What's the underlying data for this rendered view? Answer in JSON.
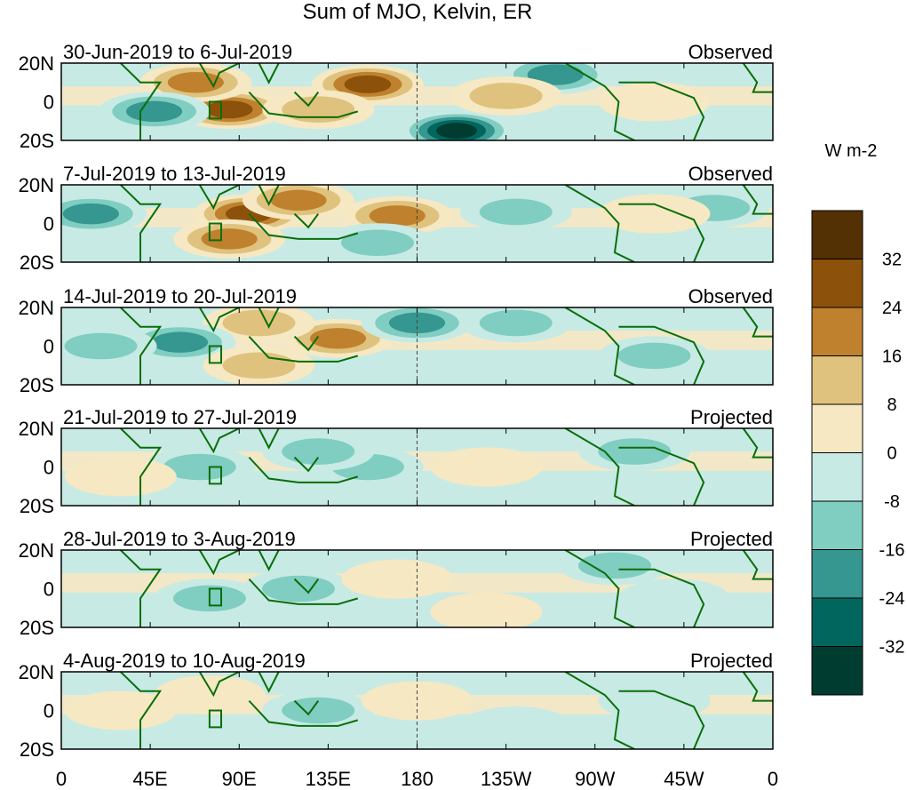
{
  "title": "Sum of MJO, Kelvin, ER",
  "units": "W m-2",
  "chart_data": {
    "type": "heatmap",
    "title": "Sum of MJO, Kelvin, ER",
    "colorbar": {
      "label": "W m-2",
      "levels": [
        -32,
        -24,
        -16,
        -8,
        0,
        8,
        16,
        24,
        32
      ],
      "tick_labels": [
        "32",
        "24",
        "16",
        "8",
        "0",
        "-8",
        "-16",
        "-24",
        "-32"
      ],
      "colors": [
        "#003c30",
        "#01665e",
        "#35978f",
        "#80cdc1",
        "#c7eae5",
        "#f6e8c3",
        "#dfc27d",
        "#bf812d",
        "#8c510a",
        "#543005"
      ]
    },
    "x_ticks": [
      "0",
      "45E",
      "90E",
      "135E",
      "180",
      "135W",
      "90W",
      "45W",
      "0"
    ],
    "y_ticks": [
      "20N",
      "0",
      "20S"
    ],
    "xlim": [
      0,
      360
    ],
    "ylim": [
      -20,
      20
    ],
    "panels": [
      {
        "dates": "30-Jun-2019 to 6-Jul-2019",
        "status": "Observed",
        "features": [
          {
            "lon": 85,
            "lat": -4,
            "value": 30
          },
          {
            "lon": 68,
            "lat": 10,
            "value": 22
          },
          {
            "lon": 47,
            "lat": -5,
            "value": -22
          },
          {
            "lon": 155,
            "lat": 9,
            "value": 26
          },
          {
            "lon": 200,
            "lat": -15,
            "value": -38
          },
          {
            "lon": 250,
            "lat": 14,
            "value": -22
          },
          {
            "lon": 130,
            "lat": -4,
            "value": 10
          },
          {
            "lon": 225,
            "lat": 3,
            "value": 12
          },
          {
            "lon": 300,
            "lat": 0,
            "value": 6
          }
        ]
      },
      {
        "dates": "7-Jul-2019 to 13-Jul-2019",
        "status": "Observed",
        "features": [
          {
            "lon": 95,
            "lat": 5,
            "value": 26
          },
          {
            "lon": 120,
            "lat": 12,
            "value": 22
          },
          {
            "lon": 15,
            "lat": 5,
            "value": -22
          },
          {
            "lon": 170,
            "lat": 4,
            "value": 20
          },
          {
            "lon": 160,
            "lat": -10,
            "value": -14
          },
          {
            "lon": 230,
            "lat": 6,
            "value": -14
          },
          {
            "lon": 330,
            "lat": 8,
            "value": -12
          },
          {
            "lon": 300,
            "lat": 5,
            "value": 6
          },
          {
            "lon": 85,
            "lat": -8,
            "value": 18
          }
        ]
      },
      {
        "dates": "14-Jul-2019 to 20-Jul-2019",
        "status": "Observed",
        "features": [
          {
            "lon": 140,
            "lat": 4,
            "value": 22
          },
          {
            "lon": 100,
            "lat": 12,
            "value": 16
          },
          {
            "lon": 60,
            "lat": 2,
            "value": -18
          },
          {
            "lon": 180,
            "lat": 12,
            "value": -22
          },
          {
            "lon": 230,
            "lat": 12,
            "value": -10
          },
          {
            "lon": 300,
            "lat": -5,
            "value": -10
          },
          {
            "lon": 20,
            "lat": 0,
            "value": -10
          },
          {
            "lon": 100,
            "lat": -10,
            "value": 10
          }
        ]
      },
      {
        "dates": "21-Jul-2019 to 27-Jul-2019",
        "status": "Projected",
        "features": [
          {
            "lon": 70,
            "lat": 0,
            "value": -16
          },
          {
            "lon": 155,
            "lat": 0,
            "value": -12
          },
          {
            "lon": 130,
            "lat": 8,
            "value": -10
          },
          {
            "lon": 215,
            "lat": 0,
            "value": 6
          },
          {
            "lon": 290,
            "lat": 8,
            "value": -10
          },
          {
            "lon": 30,
            "lat": -5,
            "value": 6
          }
        ]
      },
      {
        "dates": "28-Jul-2019 to 3-Aug-2019",
        "status": "Projected",
        "features": [
          {
            "lon": 120,
            "lat": 0,
            "value": -10
          },
          {
            "lon": 75,
            "lat": -5,
            "value": -10
          },
          {
            "lon": 170,
            "lat": 5,
            "value": 6
          },
          {
            "lon": 215,
            "lat": -12,
            "value": 8
          },
          {
            "lon": 280,
            "lat": 12,
            "value": -10
          },
          {
            "lon": 310,
            "lat": -5,
            "value": -8
          }
        ]
      },
      {
        "dates": "4-Aug-2019 to 10-Aug-2019",
        "status": "Projected",
        "features": [
          {
            "lon": 130,
            "lat": 0,
            "value": -12
          },
          {
            "lon": 75,
            "lat": 8,
            "value": 6
          },
          {
            "lon": 180,
            "lat": 5,
            "value": 6
          },
          {
            "lon": 230,
            "lat": -8,
            "value": -6
          },
          {
            "lon": 300,
            "lat": 5,
            "value": -8
          },
          {
            "lon": 30,
            "lat": 0,
            "value": 6
          }
        ]
      }
    ]
  }
}
